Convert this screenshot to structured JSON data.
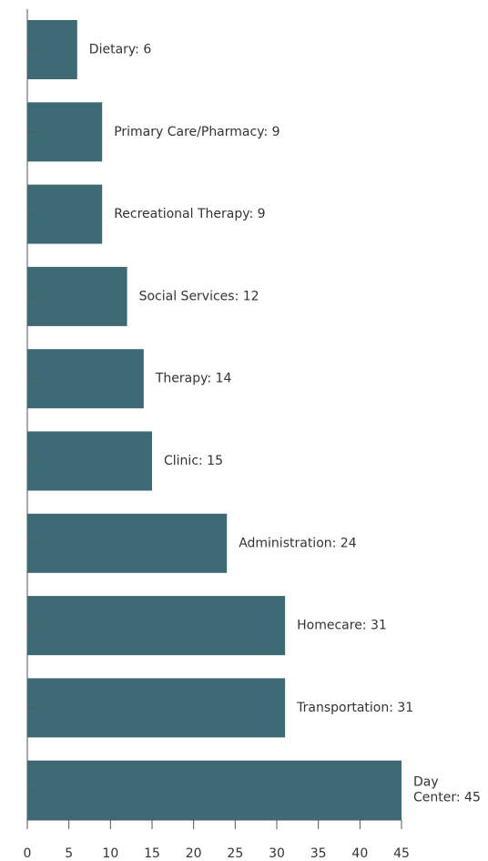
{
  "chart_data": {
    "type": "bar",
    "orientation": "horizontal",
    "categories": [
      "Dietary",
      "Primary Care/Pharmacy",
      "Recreational Therapy",
      "Social Services",
      "Therapy",
      "Clinic",
      "Administration",
      "Homecare",
      "Transportation",
      "Day Center"
    ],
    "values": [
      6,
      9,
      9,
      12,
      14,
      15,
      24,
      31,
      31,
      45
    ],
    "value_labels": [
      "Dietary: 6",
      "Primary Care/Pharmacy: 9",
      "Recreational Therapy: 9",
      "Social Services: 12",
      "Therapy: 14",
      "Clinic: 15",
      "Administration: 24",
      "Homecare: 31",
      "Transportation: 31",
      "Day Center: 45"
    ],
    "color": "#3e6a75",
    "xlim": [
      0,
      45
    ],
    "xticks": [
      0,
      5,
      10,
      15,
      20,
      25,
      30,
      35,
      40,
      45
    ]
  }
}
